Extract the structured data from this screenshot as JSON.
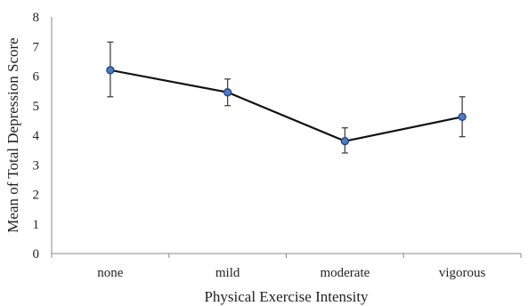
{
  "chart_data": {
    "type": "line",
    "title": "",
    "xlabel": "Physical Exercise Intensity",
    "ylabel": "Mean of Total Depression Score",
    "categories": [
      "none",
      "mild",
      "moderate",
      "vigorous"
    ],
    "y_ticks": [
      "0",
      "1",
      "2",
      "3",
      "4",
      "5",
      "6",
      "7",
      "8"
    ],
    "ylim": [
      0,
      8
    ],
    "grid": false,
    "legend": "none",
    "series": [
      {
        "values": [
          6.2,
          5.45,
          3.8,
          4.62
        ],
        "error_low": [
          5.3,
          5.0,
          3.4,
          3.95
        ],
        "error_high": [
          7.15,
          5.9,
          4.25,
          5.3
        ]
      }
    ],
    "colors": {
      "line": "#111111",
      "marker_fill": "#4f7ac7",
      "marker_stroke": "#1f3f75",
      "error_bar": "#444444",
      "axis": "#888888"
    }
  }
}
